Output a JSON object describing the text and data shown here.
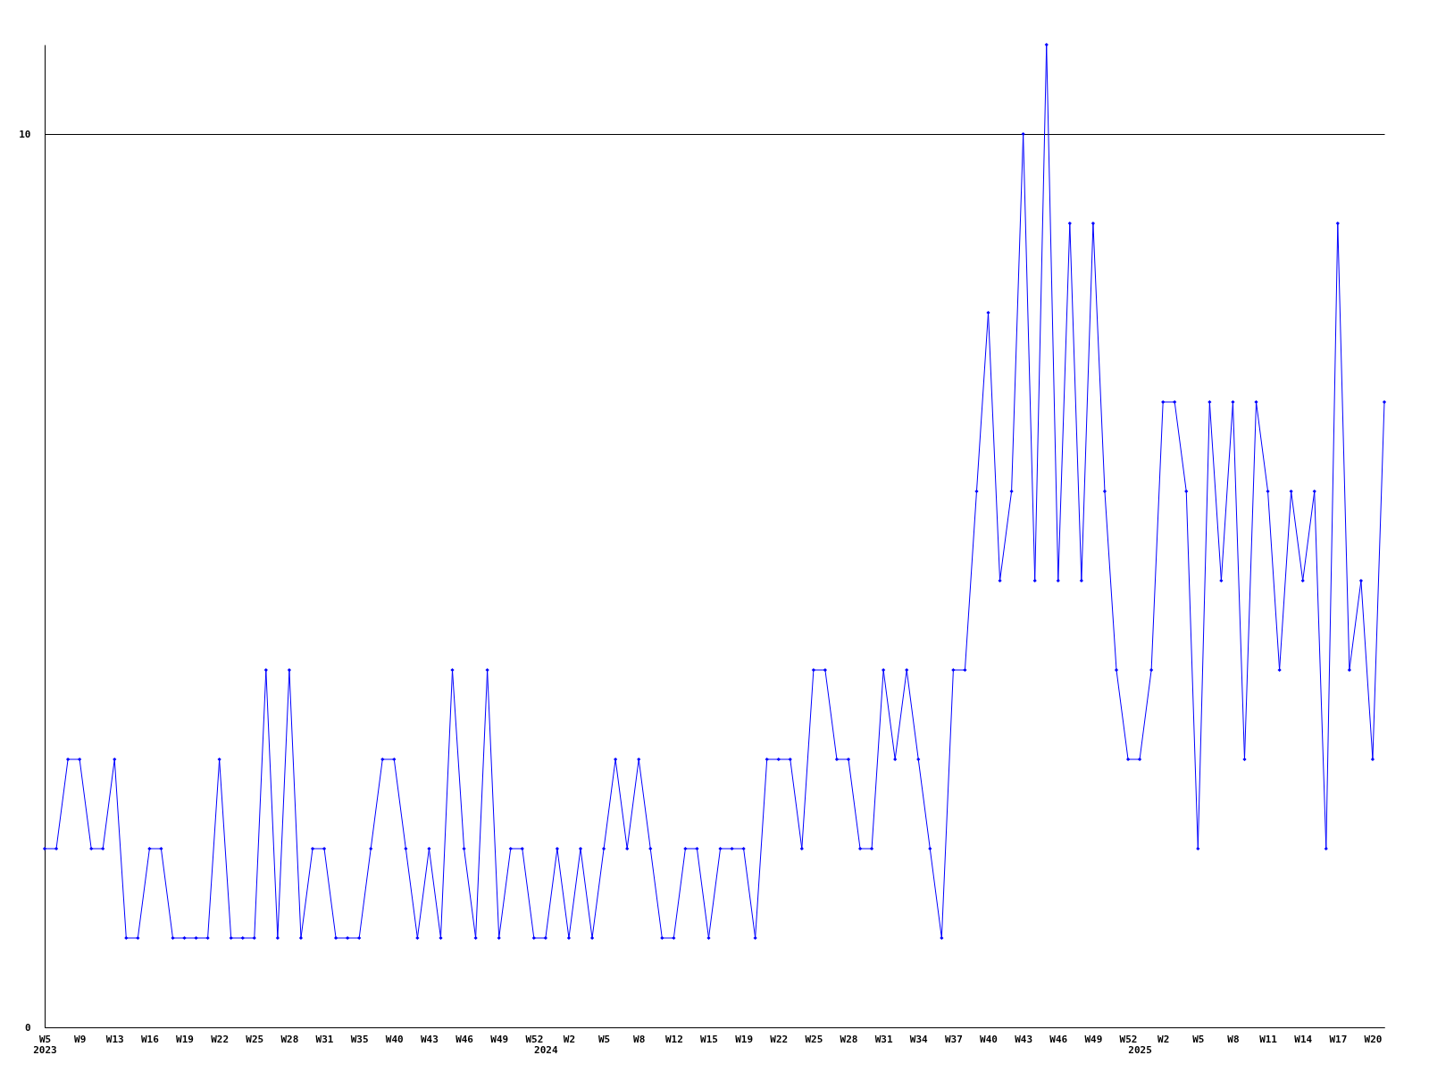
{
  "chart_data": {
    "type": "line",
    "categories": [
      "W5\n2023",
      null,
      null,
      "W9",
      null,
      null,
      "W13",
      null,
      null,
      "W16",
      null,
      null,
      "W19",
      null,
      null,
      "W22",
      null,
      null,
      "W25",
      null,
      null,
      "W28",
      null,
      null,
      "W31",
      null,
      null,
      "W35",
      null,
      null,
      "W40",
      null,
      null,
      "W43",
      null,
      null,
      "W46",
      null,
      null,
      "W49",
      null,
      null,
      "W52",
      "\n2024",
      null,
      "W2",
      null,
      null,
      "W5",
      null,
      null,
      "W8",
      null,
      null,
      "W12",
      null,
      null,
      "W15",
      null,
      null,
      "W19",
      null,
      null,
      "W22",
      null,
      null,
      "W25",
      null,
      null,
      "W28",
      null,
      null,
      "W31",
      null,
      null,
      "W34",
      null,
      null,
      "W37",
      null,
      null,
      "W40",
      null,
      null,
      "W43",
      null,
      null,
      "W46",
      null,
      null,
      "W49",
      null,
      null,
      "W52",
      "\n2025",
      null,
      "W2",
      null,
      null,
      "W5",
      null,
      null,
      "W8",
      null,
      null,
      "W11",
      null,
      null,
      "W14",
      null,
      null,
      "W17",
      null,
      null,
      "W20",
      null
    ],
    "series": [
      {
        "color": "#0000ff",
        "values": [
          2,
          2,
          3,
          3,
          2,
          2,
          3,
          1,
          1,
          2,
          2,
          1,
          1,
          1,
          1,
          3,
          1,
          1,
          1,
          4,
          1,
          4,
          1,
          2,
          2,
          1,
          1,
          1,
          2,
          3,
          3,
          2,
          1,
          2,
          1,
          4,
          2,
          1,
          4,
          1,
          2,
          2,
          1,
          1,
          2,
          1,
          2,
          1,
          2,
          3,
          2,
          3,
          2,
          1,
          1,
          2,
          2,
          1,
          2,
          2,
          2,
          1,
          3,
          3,
          3,
          2,
          4,
          4,
          3,
          3,
          2,
          2,
          4,
          3,
          4,
          3,
          2,
          1,
          4,
          4,
          6,
          8,
          5,
          6,
          10,
          5,
          11,
          5,
          9,
          5,
          9,
          6,
          4,
          3,
          3,
          4,
          7,
          7,
          6,
          2,
          7,
          5,
          7,
          3,
          7,
          6,
          4,
          6,
          5,
          6,
          2,
          9,
          4,
          5,
          3,
          7
        ]
      }
    ],
    "ylim": [
      0,
      11
    ],
    "yticks": [
      0,
      10
    ],
    "grid": "y",
    "marker": "diamond",
    "line_style": "solid"
  }
}
